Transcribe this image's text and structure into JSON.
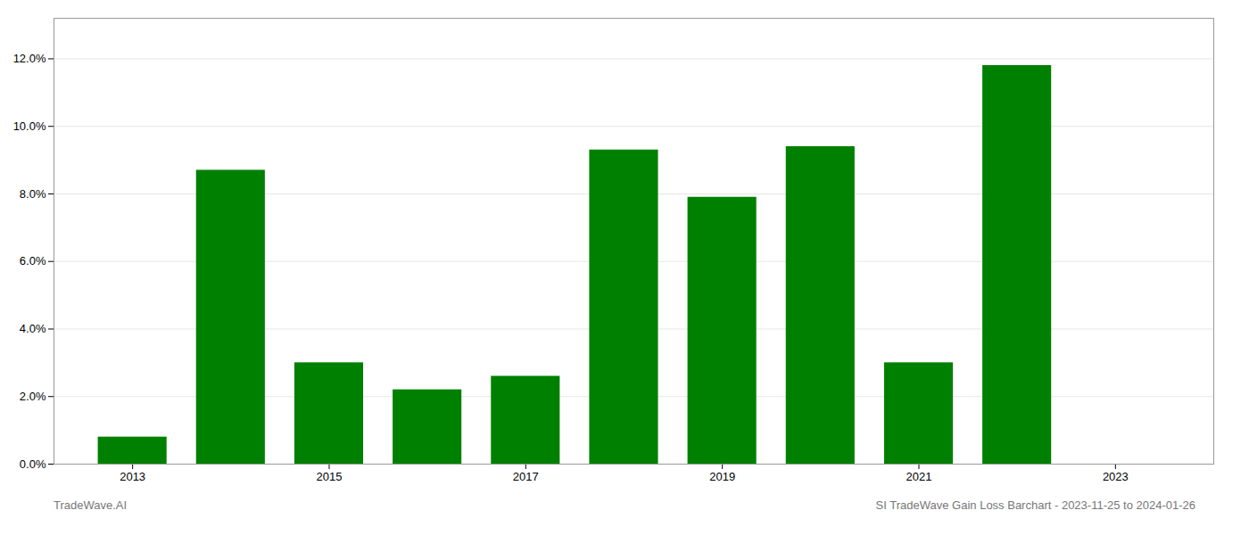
{
  "chart_data": {
    "type": "bar",
    "x": [
      2013,
      2014,
      2015,
      2016,
      2017,
      2018,
      2019,
      2020,
      2021,
      2022
    ],
    "values": [
      0.008,
      0.087,
      0.03,
      0.022,
      0.026,
      0.093,
      0.079,
      0.094,
      0.03,
      0.118
    ],
    "color": "#008000",
    "xlim": [
      2012.2,
      2024.0
    ],
    "xticks": [
      2013,
      2015,
      2017,
      2019,
      2021,
      2023
    ],
    "ylim": [
      0,
      0.132
    ],
    "yticks": [
      {
        "value": 0.0,
        "label": "0.0%"
      },
      {
        "value": 0.02,
        "label": "2.0%"
      },
      {
        "value": 0.04,
        "label": "4.0%"
      },
      {
        "value": 0.06,
        "label": "6.0%"
      },
      {
        "value": 0.08,
        "label": "8.0%"
      },
      {
        "value": 0.1,
        "label": "10.0%"
      },
      {
        "value": 0.12,
        "label": "12.0%"
      }
    ],
    "grid": true,
    "annotations": [
      "TradeWave.AI",
      "SI TradeWave Gain Loss Barchart - 2023-11-25 to 2024-01-26"
    ]
  }
}
